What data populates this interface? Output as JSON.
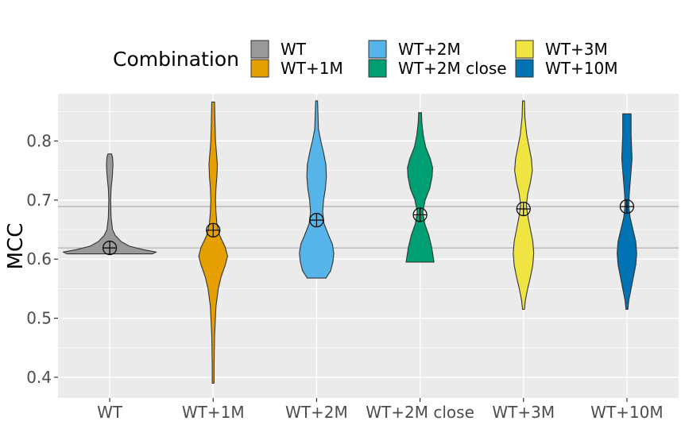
{
  "chart_data": {
    "type": "violin",
    "xlabel": "",
    "ylabel": "MCC",
    "ylim": [
      0.365,
      0.88
    ],
    "yticks": [
      0.4,
      0.5,
      0.6,
      0.7,
      0.8
    ],
    "ytick_labels": [
      "0.4",
      "0.5",
      "0.6",
      "0.7",
      "0.8"
    ],
    "grid": true,
    "legend": {
      "title": "Combination",
      "placement": "top"
    },
    "reference_lines": [
      0.619,
      0.689
    ],
    "categories": [
      "WT",
      "WT+1M",
      "WT+2M",
      "WT+2M close",
      "WT+3M",
      "WT+10M"
    ],
    "series": [
      {
        "name": "WT",
        "color": "#999999",
        "mean": 0.619,
        "profile": [
          [
            0.609,
            0.92
          ],
          [
            0.612,
            1.0
          ],
          [
            0.616,
            0.72
          ],
          [
            0.622,
            0.42
          ],
          [
            0.63,
            0.24
          ],
          [
            0.64,
            0.12
          ],
          [
            0.65,
            0.06
          ],
          [
            0.67,
            0.03
          ],
          [
            0.7,
            0.02
          ],
          [
            0.72,
            0.03
          ],
          [
            0.735,
            0.05
          ],
          [
            0.745,
            0.06
          ],
          [
            0.76,
            0.07
          ],
          [
            0.772,
            0.06
          ],
          [
            0.778,
            0.04
          ]
        ]
      },
      {
        "name": "WT+1M",
        "color": "#E69F00",
        "mean": 0.649,
        "profile": [
          [
            0.39,
            0.02
          ],
          [
            0.42,
            0.02
          ],
          [
            0.47,
            0.03
          ],
          [
            0.52,
            0.06
          ],
          [
            0.55,
            0.11
          ],
          [
            0.57,
            0.17
          ],
          [
            0.59,
            0.26
          ],
          [
            0.605,
            0.31
          ],
          [
            0.62,
            0.26
          ],
          [
            0.64,
            0.14
          ],
          [
            0.66,
            0.08
          ],
          [
            0.68,
            0.06
          ],
          [
            0.7,
            0.05
          ],
          [
            0.72,
            0.06
          ],
          [
            0.74,
            0.08
          ],
          [
            0.76,
            0.09
          ],
          [
            0.78,
            0.07
          ],
          [
            0.8,
            0.05
          ],
          [
            0.83,
            0.04
          ],
          [
            0.866,
            0.03
          ]
        ]
      },
      {
        "name": "WT+2M",
        "color": "#56B4E9",
        "mean": 0.666,
        "profile": [
          [
            0.568,
            0.2
          ],
          [
            0.58,
            0.3
          ],
          [
            0.595,
            0.35
          ],
          [
            0.61,
            0.37
          ],
          [
            0.625,
            0.34
          ],
          [
            0.64,
            0.26
          ],
          [
            0.66,
            0.16
          ],
          [
            0.68,
            0.13
          ],
          [
            0.7,
            0.15
          ],
          [
            0.72,
            0.19
          ],
          [
            0.74,
            0.21
          ],
          [
            0.76,
            0.2
          ],
          [
            0.78,
            0.15
          ],
          [
            0.8,
            0.09
          ],
          [
            0.82,
            0.04
          ],
          [
            0.845,
            0.03
          ],
          [
            0.868,
            0.02
          ]
        ]
      },
      {
        "name": "WT+2M close",
        "color": "#009E73",
        "mean": 0.675,
        "profile": [
          [
            0.595,
            0.3
          ],
          [
            0.6,
            0.29
          ],
          [
            0.62,
            0.25
          ],
          [
            0.64,
            0.19
          ],
          [
            0.66,
            0.1
          ],
          [
            0.68,
            0.06
          ],
          [
            0.7,
            0.11
          ],
          [
            0.72,
            0.21
          ],
          [
            0.74,
            0.26
          ],
          [
            0.755,
            0.27
          ],
          [
            0.77,
            0.22
          ],
          [
            0.79,
            0.12
          ],
          [
            0.81,
            0.07
          ],
          [
            0.83,
            0.04
          ],
          [
            0.848,
            0.03
          ]
        ]
      },
      {
        "name": "WT+3M",
        "color": "#F0E442",
        "mean": 0.685,
        "profile": [
          [
            0.515,
            0.02
          ],
          [
            0.53,
            0.04
          ],
          [
            0.55,
            0.09
          ],
          [
            0.57,
            0.15
          ],
          [
            0.59,
            0.2
          ],
          [
            0.61,
            0.22
          ],
          [
            0.63,
            0.2
          ],
          [
            0.65,
            0.15
          ],
          [
            0.67,
            0.1
          ],
          [
            0.69,
            0.06
          ],
          [
            0.71,
            0.09
          ],
          [
            0.73,
            0.15
          ],
          [
            0.75,
            0.19
          ],
          [
            0.77,
            0.17
          ],
          [
            0.79,
            0.12
          ],
          [
            0.81,
            0.07
          ],
          [
            0.84,
            0.03
          ],
          [
            0.868,
            0.02
          ]
        ]
      },
      {
        "name": "WT+10M",
        "color": "#0072B2",
        "mean": 0.689,
        "profile": [
          [
            0.515,
            0.02
          ],
          [
            0.53,
            0.04
          ],
          [
            0.55,
            0.09
          ],
          [
            0.57,
            0.14
          ],
          [
            0.59,
            0.19
          ],
          [
            0.61,
            0.21
          ],
          [
            0.63,
            0.19
          ],
          [
            0.65,
            0.13
          ],
          [
            0.67,
            0.07
          ],
          [
            0.69,
            0.04
          ],
          [
            0.71,
            0.05
          ],
          [
            0.73,
            0.07
          ],
          [
            0.75,
            0.09
          ],
          [
            0.77,
            0.11
          ],
          [
            0.79,
            0.1
          ],
          [
            0.81,
            0.09
          ],
          [
            0.83,
            0.09
          ],
          [
            0.846,
            0.09
          ]
        ]
      }
    ]
  }
}
